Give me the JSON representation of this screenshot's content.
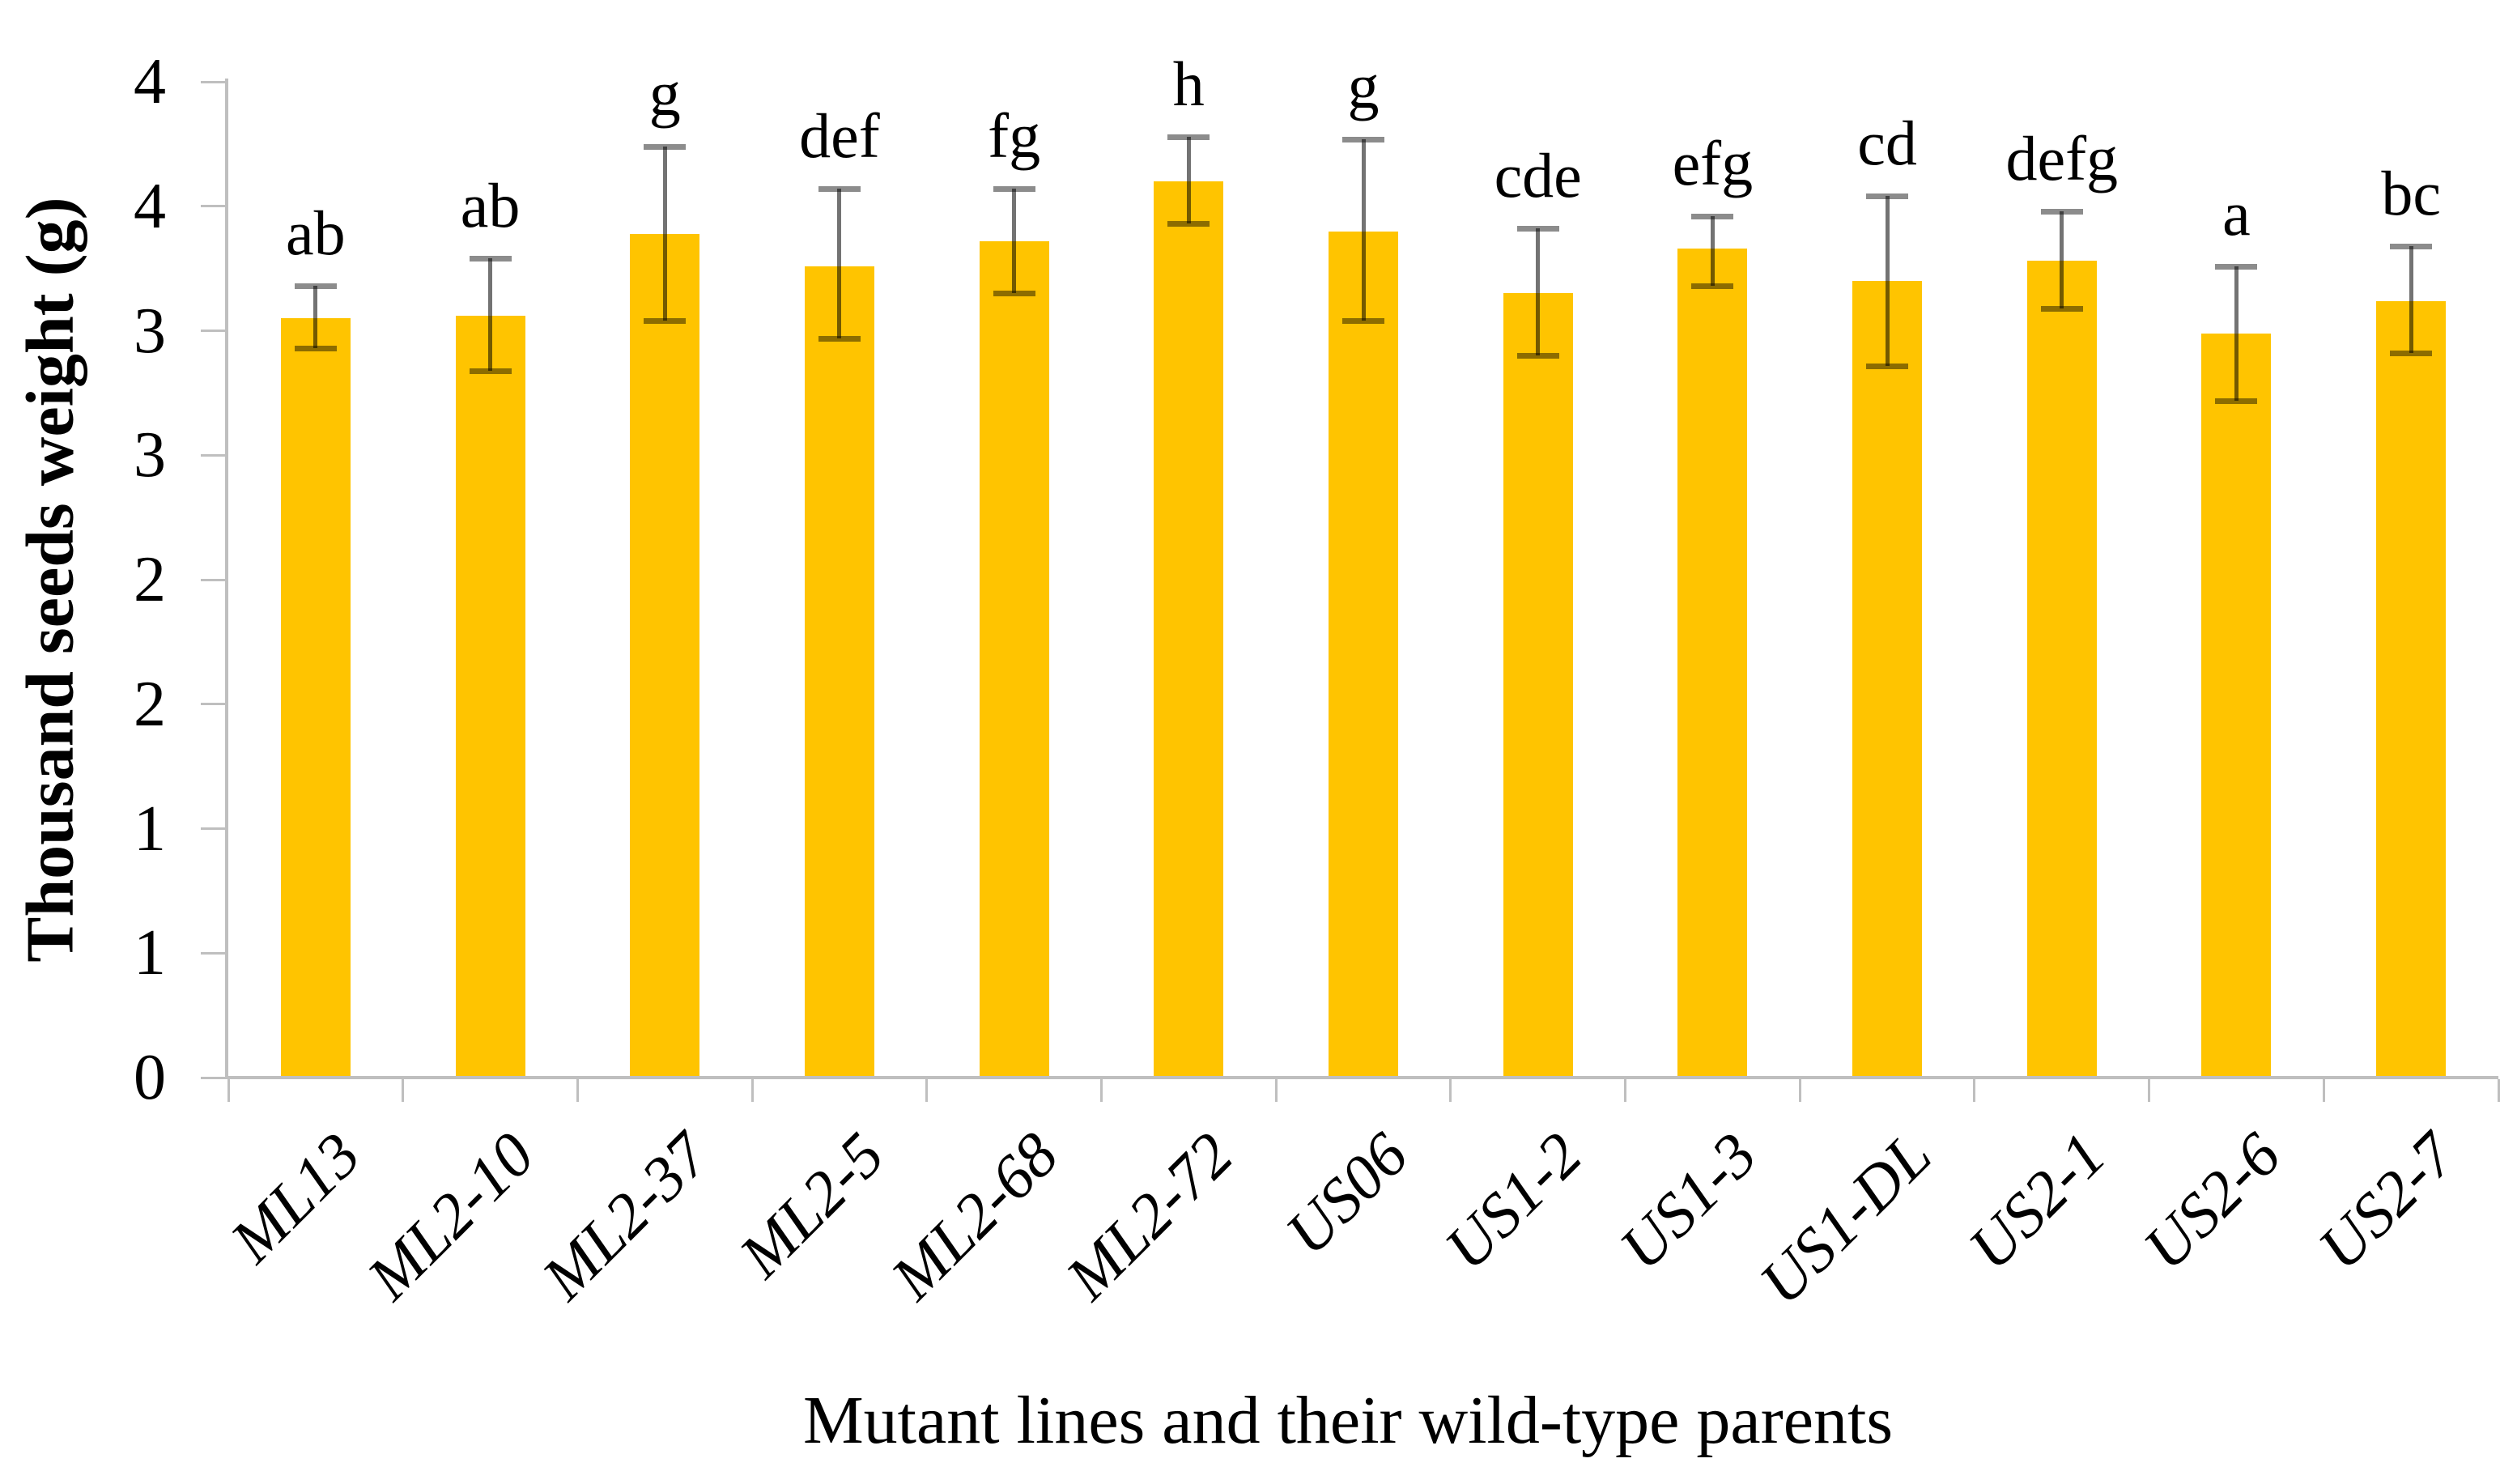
{
  "chart_data": {
    "type": "bar",
    "title": "",
    "xlabel": "Mutant lines and their wild-type parents",
    "ylabel": "Thousand seeds weight (g)",
    "ylim": [
      0,
      4
    ],
    "y_tick_step": 0.5,
    "y_tick_values": [
      4,
      3.5,
      3,
      2.5,
      2,
      1.5,
      1,
      0.5,
      0
    ],
    "y_tick_labels": [
      "4",
      "4",
      "3",
      "3",
      "2",
      "2",
      "1",
      "1",
      "0"
    ],
    "grid": false,
    "legend": "none",
    "categories": [
      "ML13",
      "ML2-10",
      "ML2-37",
      "ML2-5",
      "ML2-68",
      "ML2-72",
      "US06",
      "US1-2",
      "US1-3",
      "US1-DL",
      "US2-1",
      "US2-6",
      "US2-7"
    ],
    "values": [
      3.05,
      3.06,
      3.39,
      3.26,
      3.36,
      3.6,
      3.4,
      3.15,
      3.33,
      3.2,
      3.28,
      2.99,
      3.12
    ],
    "error_upper": [
      0.13,
      0.23,
      0.35,
      0.31,
      0.21,
      0.18,
      0.37,
      0.26,
      0.13,
      0.34,
      0.2,
      0.27,
      0.22
    ],
    "error_lower": [
      0.12,
      0.22,
      0.35,
      0.29,
      0.21,
      0.17,
      0.36,
      0.25,
      0.15,
      0.34,
      0.19,
      0.27,
      0.21
    ],
    "significance_letters": [
      "ab",
      "ab",
      "g",
      "def",
      "fg",
      "h",
      "g",
      "cde",
      "efg",
      "cd",
      "defg",
      "a",
      "bc"
    ],
    "colors": {
      "bar": "#FFC400",
      "axis": "#BFBFBF",
      "error_line": "#737373",
      "error_cap": "#8C8C8C",
      "text": "#000000"
    }
  }
}
